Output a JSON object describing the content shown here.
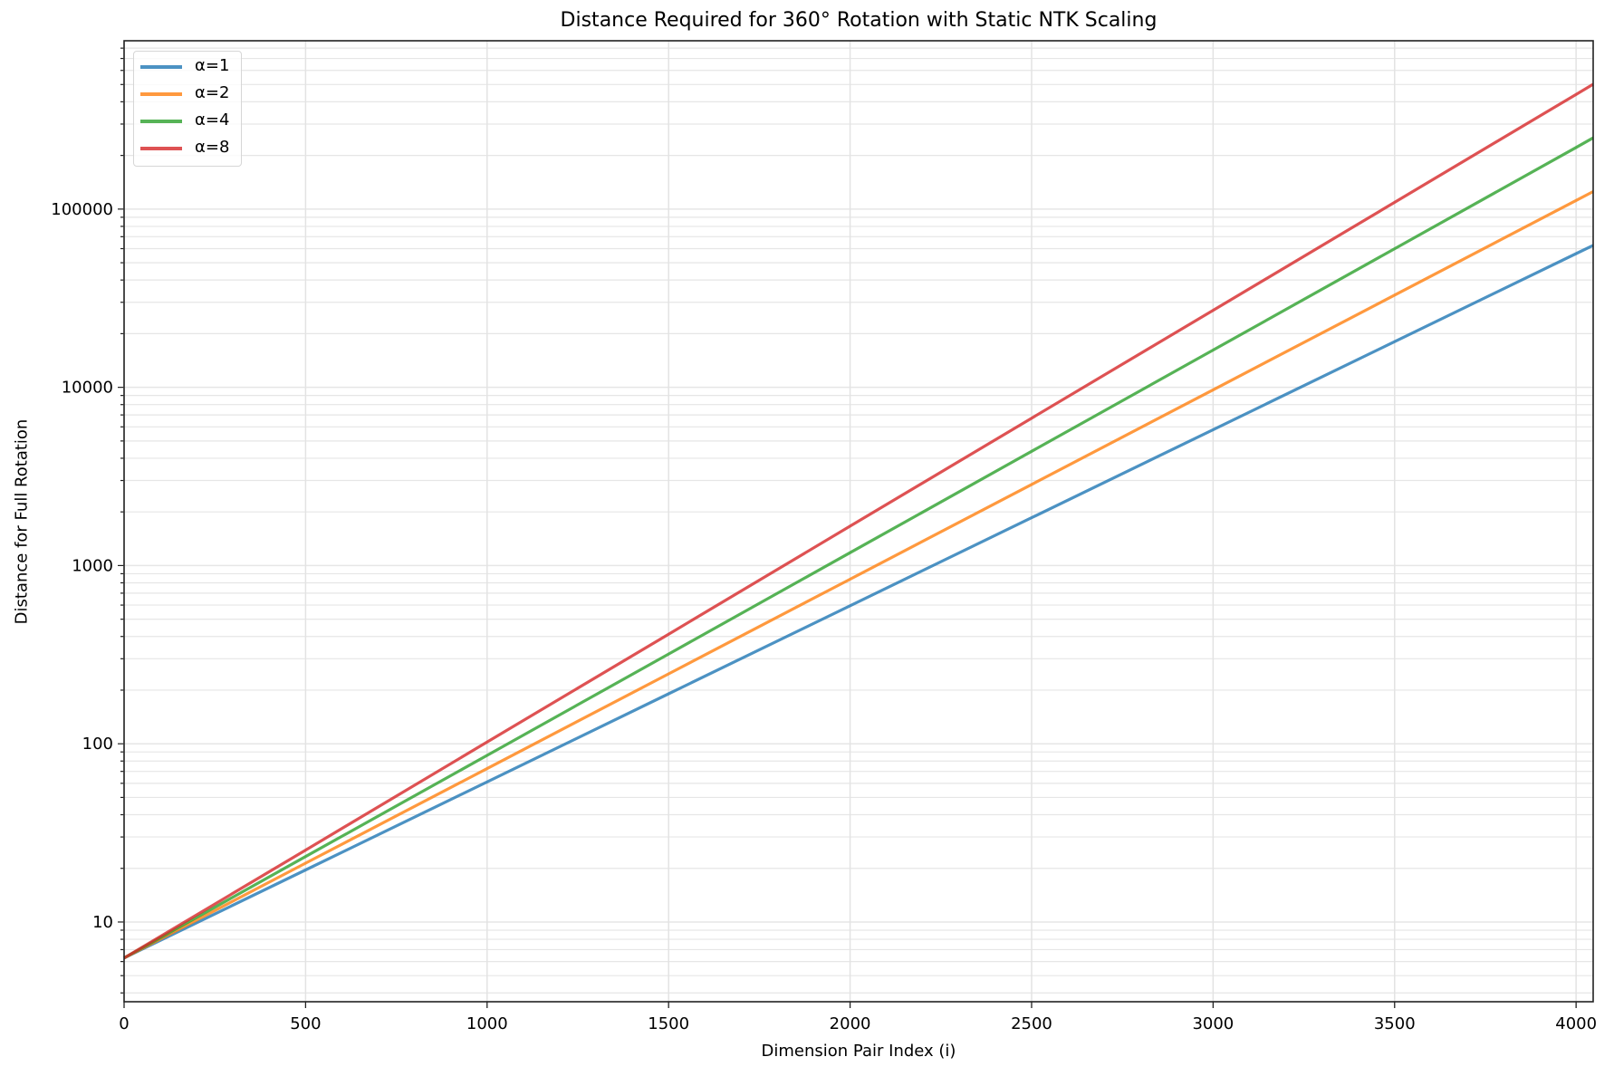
{
  "chart_data": {
    "type": "line",
    "title": "Distance Required for 360° Rotation with Static NTK Scaling",
    "xlabel": "Dimension Pair Index (i)",
    "ylabel": "Distance for Full Rotation",
    "yscale": "log",
    "xlim": [
      0,
      4047
    ],
    "ylim": [
      3.57,
      880000
    ],
    "x_ticks": [
      0,
      500,
      1000,
      1500,
      2000,
      2500,
      3000,
      3500,
      4000
    ],
    "y_ticks": [
      10,
      100,
      1000,
      10000,
      100000
    ],
    "y_tick_labels": [
      "10",
      "100",
      "1000",
      "10000",
      "100000"
    ],
    "grid": true,
    "legend_position": "upper left",
    "x": [
      0,
      500,
      1000,
      1500,
      2000,
      2500,
      3000,
      3500,
      4000,
      4047
    ],
    "series": [
      {
        "name": "α=1",
        "color": "#1f77b4",
        "values": [
          6.28,
          19.6,
          61.1,
          190.7,
          595,
          1855,
          5787,
          18052,
          56297,
          62618
        ]
      },
      {
        "name": "α=2",
        "color": "#ff7f0e",
        "values": [
          6.28,
          21.4,
          72.6,
          246.7,
          838,
          2849,
          9682,
          32905,
          111840,
          125470
        ]
      },
      {
        "name": "α=4",
        "color": "#2ca02c",
        "values": [
          6.28,
          23.3,
          86.1,
          318.9,
          1181,
          4372,
          16186,
          59924,
          221800,
          250890
        ]
      },
      {
        "name": "α=8",
        "color": "#d62728",
        "values": [
          6.28,
          25.3,
          102.2,
          412.2,
          1663,
          6710,
          27056,
          109140,
          440140,
          501770
        ]
      }
    ]
  },
  "legend": {
    "items": [
      {
        "label": "α=1",
        "color": "#1f77b4"
      },
      {
        "label": "α=2",
        "color": "#ff7f0e"
      },
      {
        "label": "α=4",
        "color": "#2ca02c"
      },
      {
        "label": "α=8",
        "color": "#d62728"
      }
    ]
  }
}
